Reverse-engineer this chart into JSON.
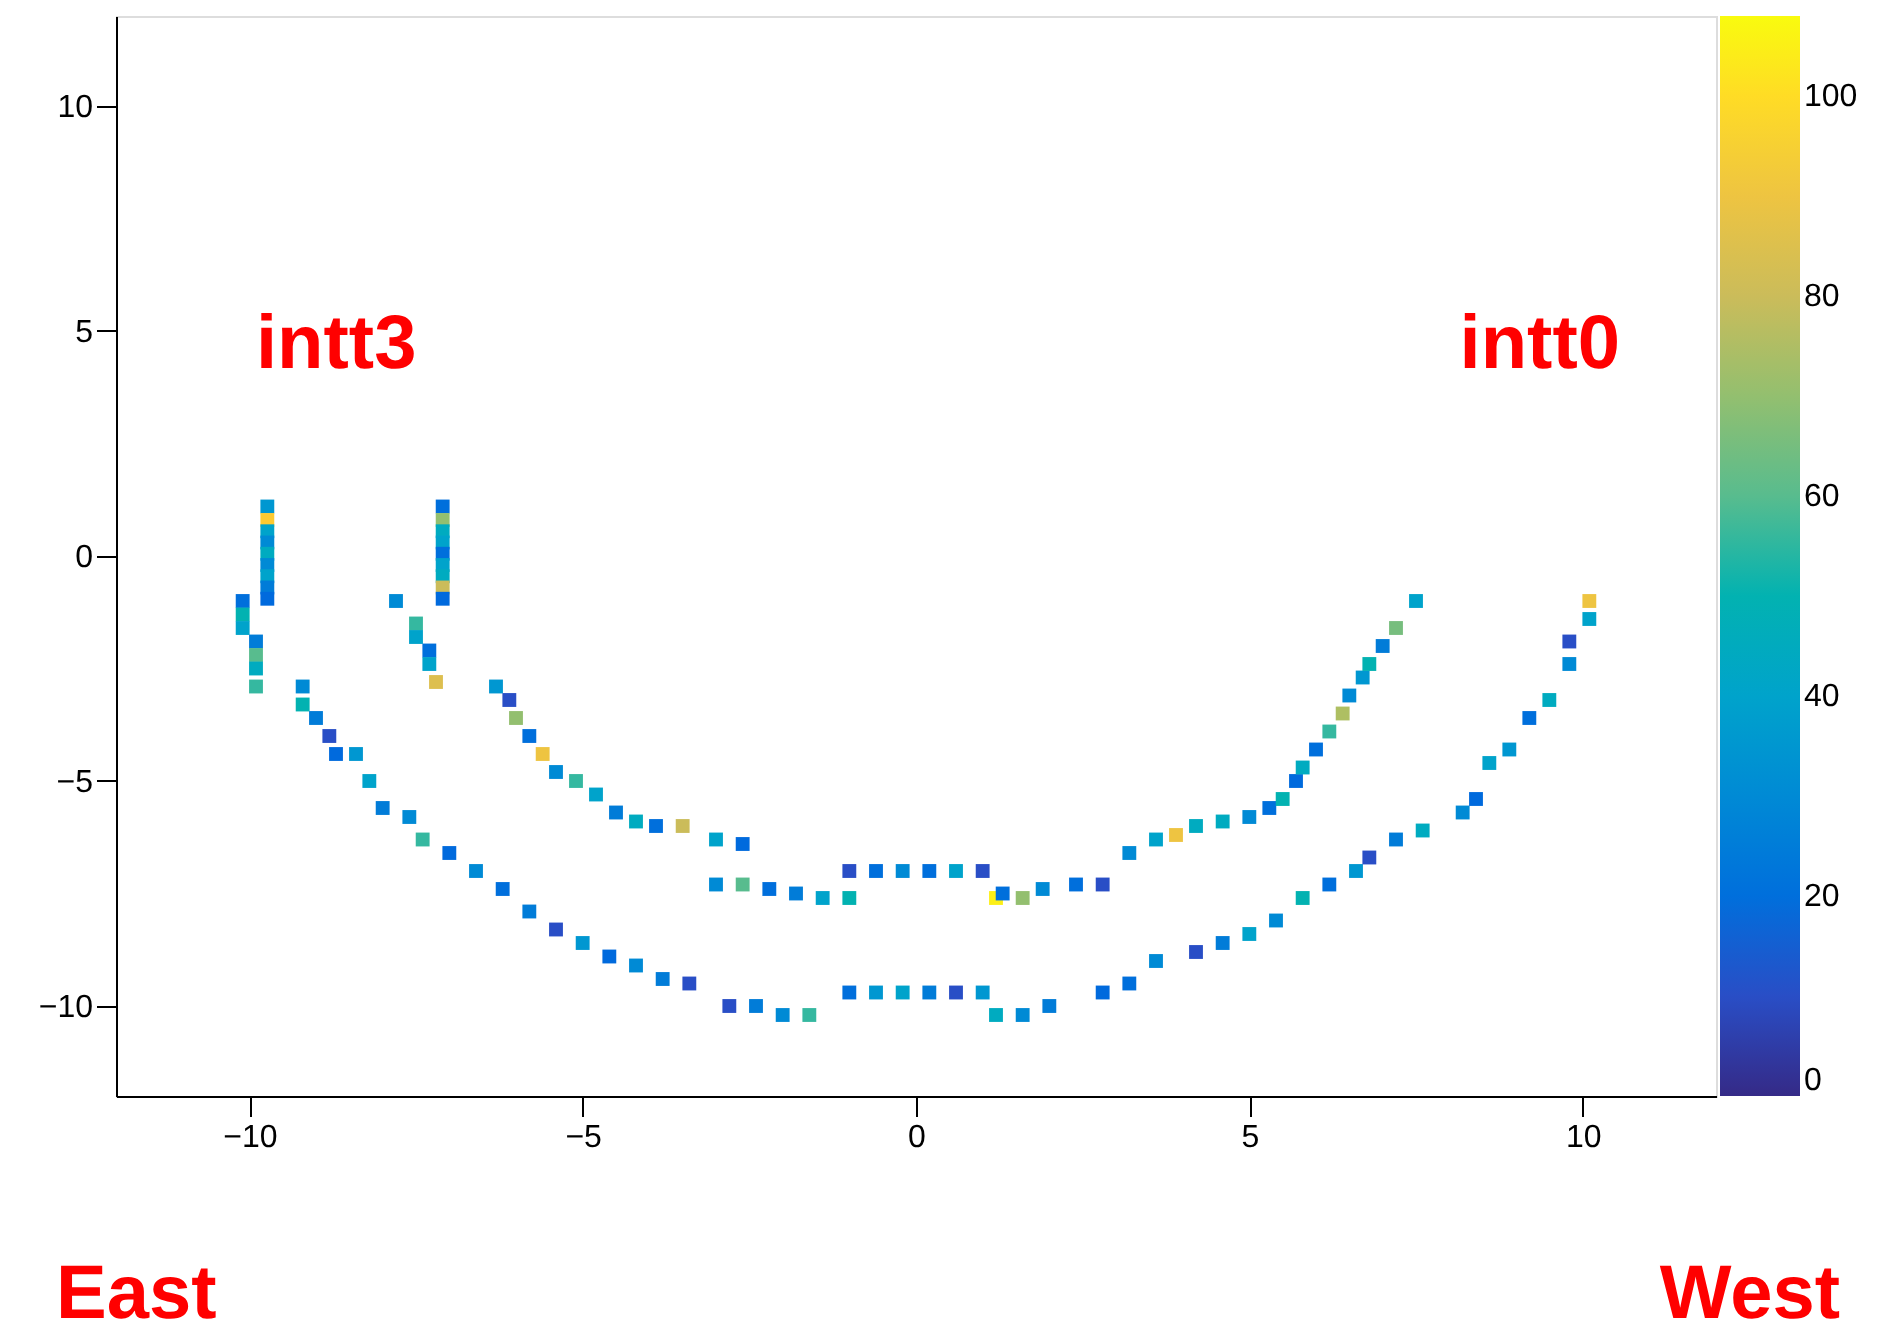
{
  "chart_data": {
    "type": "scatter",
    "marker": "square",
    "grid": false,
    "x": [
      -9.73,
      -9.73,
      -9.73,
      -9.73,
      -9.73,
      -9.73,
      -9.73,
      -9.73,
      -9.73,
      -10.1,
      -10.1,
      -10.1,
      -9.9,
      -9.9,
      -9.9,
      -9.9,
      -9.2,
      -9.2,
      -9.0,
      -8.8,
      -8.7,
      -8.4,
      -8.2,
      -8.0,
      -7.6,
      -7.4,
      -7.0,
      -6.6,
      -6.2,
      -5.8,
      -5.4,
      -5.0,
      -4.6,
      -4.2,
      -3.8,
      -3.4,
      -2.8,
      -2.4,
      -2.0,
      -1.6,
      -1.0,
      -0.6,
      -0.2,
      0.2,
      0.6,
      1.0,
      1.2,
      1.6,
      2.0,
      2.8,
      3.2,
      3.6,
      4.2,
      4.6,
      5.0,
      5.4,
      5.8,
      6.2,
      6.6,
      6.8,
      7.2,
      7.6,
      8.2,
      8.4,
      8.6,
      8.9,
      9.2,
      9.5,
      9.8,
      9.8,
      10.1,
      10.1,
      -7.1,
      -7.1,
      -7.1,
      -7.1,
      -7.1,
      -7.1,
      -7.1,
      -7.1,
      -7.1,
      -7.8,
      -7.5,
      -7.5,
      -7.3,
      -7.3,
      -7.2,
      -6.3,
      -6.1,
      -6.0,
      -5.8,
      -5.6,
      -5.4,
      -5.1,
      -4.8,
      -4.5,
      -4.2,
      -3.9,
      -3.5,
      -3.0,
      -2.6,
      -3.0,
      -2.6,
      -2.2,
      -1.8,
      -1.4,
      -1.0,
      -1.0,
      -0.6,
      -0.2,
      0.2,
      0.6,
      1.0,
      1.2,
      1.3,
      1.6,
      1.9,
      2.4,
      2.8,
      3.2,
      3.6,
      3.9,
      4.2,
      4.6,
      5.0,
      5.3,
      5.5,
      5.7,
      5.8,
      6.0,
      6.2,
      6.4,
      6.5,
      6.7,
      6.8,
      7.0,
      7.2,
      7.5
    ],
    "values": [
      1.1,
      0.8,
      0.55,
      0.3,
      0.05,
      -0.2,
      -0.45,
      -0.7,
      -0.95,
      -1.0,
      -1.3,
      -1.6,
      -1.9,
      -2.2,
      -2.5,
      -2.9,
      -2.9,
      -3.3,
      -3.6,
      -4.0,
      -4.4,
      -4.4,
      -5.0,
      -5.6,
      -5.8,
      -6.3,
      -6.6,
      -7.0,
      -7.4,
      -7.9,
      -8.3,
      -8.6,
      -8.9,
      -9.1,
      -9.4,
      -9.5,
      -10.0,
      -10.0,
      -10.2,
      -10.2,
      -9.7,
      -9.7,
      -9.7,
      -9.7,
      -9.7,
      -9.7,
      -10.2,
      -10.2,
      -10.0,
      -9.7,
      -9.5,
      -9.0,
      -8.8,
      -8.6,
      -8.4,
      -8.1,
      -7.6,
      -7.3,
      -7.0,
      -6.7,
      -6.3,
      -6.1,
      -5.7,
      -5.4,
      -4.6,
      -4.3,
      -3.6,
      -3.2,
      -2.4,
      -1.9,
      -1.4,
      -1.0,
      1.1,
      0.8,
      0.55,
      0.3,
      0.05,
      -0.2,
      -0.45,
      -0.7,
      -0.95,
      -1.0,
      -1.5,
      -1.8,
      -2.1,
      -2.4,
      -2.8,
      -2.9,
      -3.2,
      -3.6,
      -4.0,
      -4.4,
      -4.8,
      -5.0,
      -5.3,
      -5.7,
      -5.9,
      -6.0,
      -6.0,
      -6.3,
      -6.4,
      -7.3,
      -7.3,
      -7.4,
      -7.5,
      -7.6,
      -7.6,
      -7.0,
      -7.0,
      -7.0,
      -7.0,
      -7.0,
      -7.0,
      -7.6,
      -7.5,
      -7.6,
      -7.4,
      -7.3,
      -7.3,
      -6.6,
      -6.3,
      -6.2,
      -6.0,
      -5.9,
      -5.8,
      -5.6,
      -5.4,
      -5.0,
      -4.7,
      -4.3,
      -3.9,
      -3.5,
      -3.1,
      -2.7,
      -2.4,
      -2.0,
      -1.6,
      -1.0
    ],
    "cvalues": [
      35,
      95,
      40,
      30,
      45,
      30,
      40,
      25,
      18,
      20,
      50,
      40,
      25,
      60,
      45,
      55,
      30,
      50,
      25,
      10,
      18,
      35,
      40,
      25,
      30,
      55,
      18,
      30,
      20,
      25,
      10,
      35,
      18,
      30,
      25,
      10,
      10,
      25,
      30,
      55,
      20,
      35,
      40,
      25,
      10,
      35,
      45,
      30,
      25,
      18,
      20,
      30,
      10,
      25,
      40,
      30,
      50,
      20,
      35,
      10,
      25,
      45,
      30,
      18,
      40,
      35,
      20,
      45,
      30,
      10,
      40,
      90,
      20,
      70,
      45,
      40,
      20,
      40,
      45,
      80,
      18,
      30,
      55,
      40,
      20,
      40,
      85,
      35,
      10,
      70,
      20,
      90,
      30,
      55,
      40,
      25,
      45,
      20,
      80,
      40,
      18,
      30,
      60,
      20,
      25,
      40,
      50,
      10,
      20,
      30,
      20,
      40,
      10,
      105,
      20,
      70,
      30,
      20,
      10,
      30,
      40,
      90,
      45,
      45,
      30,
      20,
      50,
      18,
      45,
      20,
      55,
      75,
      30,
      35,
      50,
      25,
      65,
      40
    ],
    "xlim": [
      -12,
      12
    ],
    "ylim": [
      -12,
      12
    ],
    "xticks": [
      -10,
      -5,
      0,
      5,
      10
    ],
    "yticks": [
      -10,
      -5,
      0,
      5,
      10
    ],
    "clim": [
      0,
      108
    ],
    "cticks": [
      0,
      20,
      40,
      60,
      80,
      100
    ],
    "annotations": [
      "intt3",
      "intt0",
      "East",
      "West"
    ]
  }
}
